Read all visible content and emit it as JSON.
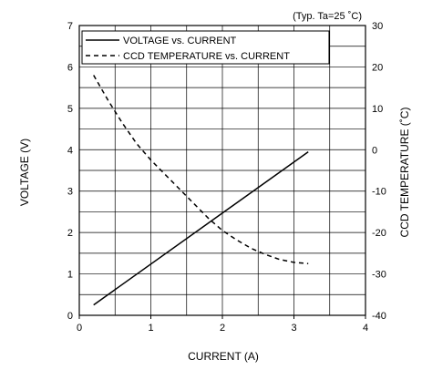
{
  "chart_data": {
    "type": "line",
    "note": "(Typ. Ta=25 ˚C)",
    "xlabel": "CURRENT (A)",
    "ylabel_left": "VOLTAGE (V)",
    "ylabel_right": "CCD TEMPERATURE (˚C)",
    "xlim": [
      0,
      4
    ],
    "ylim_left": [
      0,
      7
    ],
    "ylim_right": [
      -40,
      30
    ],
    "x_ticks": [
      "0",
      "1",
      "2",
      "3",
      "4"
    ],
    "y_left_ticks": [
      "0",
      "1",
      "2",
      "3",
      "4",
      "5",
      "6",
      "7"
    ],
    "y_right_ticks": [
      "-40",
      "-30",
      "-20",
      "-10",
      "0",
      "10",
      "20",
      "30"
    ],
    "grid": true,
    "legend_position": "top-left",
    "series": [
      {
        "name": "VOLTAGE vs. CURRENT",
        "axis": "left",
        "style": "solid",
        "x": [
          0.2,
          3.2
        ],
        "y": [
          0.25,
          3.95
        ]
      },
      {
        "name": "CCD TEMPERATURE vs. CURRENT",
        "axis": "right",
        "style": "dashed",
        "x": [
          0.2,
          0.4,
          0.6,
          0.8,
          1.0,
          1.2,
          1.4,
          1.6,
          1.8,
          2.0,
          2.2,
          2.4,
          2.6,
          2.8,
          3.0,
          3.2
        ],
        "y": [
          18,
          12,
          6.5,
          1.5,
          -2.5,
          -6,
          -9.5,
          -13,
          -16.5,
          -19.5,
          -21.8,
          -23.8,
          -25.3,
          -26.5,
          -27.2,
          -27.5
        ]
      }
    ]
  }
}
